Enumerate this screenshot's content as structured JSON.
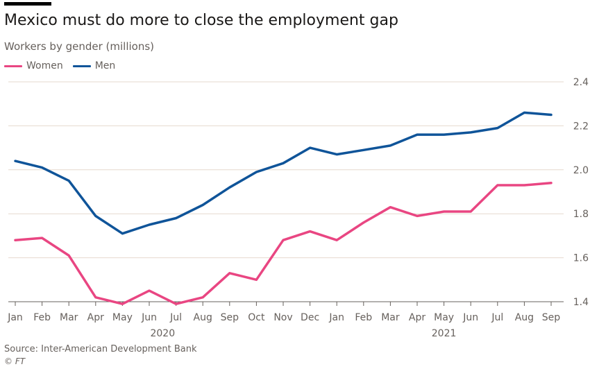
{
  "title": "Mexico must do more to close the employment gap",
  "subtitle": "Workers by gender (millions)",
  "source": "Source: Inter-American Development Bank",
  "credit": "© FT",
  "colors": {
    "women": "#e94682",
    "men": "#0f5499",
    "grid": "#e6d9ce",
    "axis": "#66605c"
  },
  "chart_data": {
    "type": "line",
    "x": [
      "Jan",
      "Feb",
      "Mar",
      "Apr",
      "May",
      "Jun",
      "Jul",
      "Aug",
      "Sep",
      "Oct",
      "Nov",
      "Dec",
      "Jan",
      "Feb",
      "Mar",
      "Apr",
      "May",
      "Jun",
      "Jul",
      "Aug",
      "Sep"
    ],
    "year_labels": [
      "2020",
      "2021"
    ],
    "series": [
      {
        "name": "Women",
        "values": [
          1.68,
          1.69,
          1.61,
          1.42,
          1.39,
          1.45,
          1.39,
          1.42,
          1.53,
          1.5,
          1.68,
          1.72,
          1.68,
          1.76,
          1.83,
          1.79,
          1.81,
          1.81,
          1.93,
          1.93,
          1.94
        ]
      },
      {
        "name": "Men",
        "values": [
          2.04,
          2.01,
          1.95,
          1.79,
          1.71,
          1.75,
          1.78,
          1.84,
          1.92,
          1.99,
          2.03,
          2.1,
          2.07,
          2.09,
          2.11,
          2.16,
          2.16,
          2.17,
          2.19,
          2.26,
          2.25
        ]
      }
    ],
    "ylim": [
      1.4,
      2.4
    ],
    "yticks": [
      "1.4",
      "1.6",
      "1.8",
      "2.0",
      "2.2",
      "2.4"
    ],
    "grid": true,
    "legend_position": "top-left"
  }
}
